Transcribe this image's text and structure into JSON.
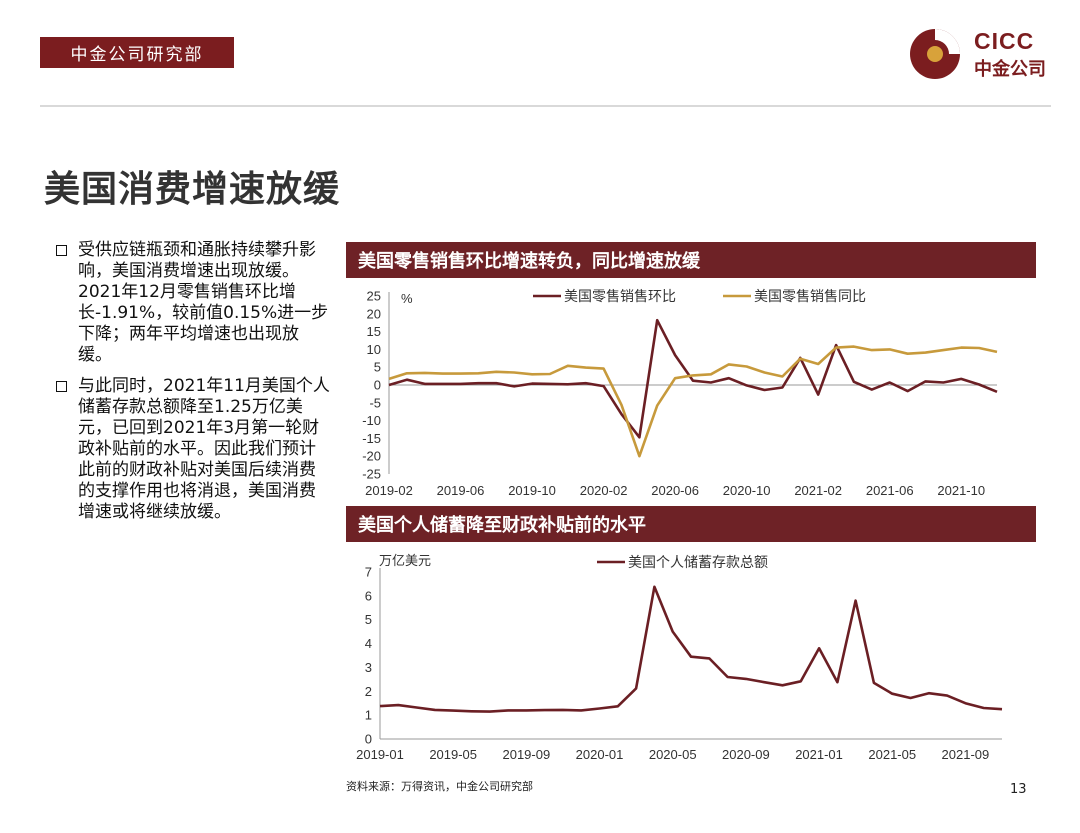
{
  "header": {
    "dept_tag": "中金公司研究部",
    "logo_en": "CICC",
    "logo_cn": "中金公司",
    "brand_color": "#7b1d1f"
  },
  "page_title": "美国消费增速放缓",
  "bullets": [
    "受供应链瓶颈和通胀持续攀升影响，美国消费增速出现放缓。2021年12月零售销售环比增长-1.91%，较前值0.15%进一步下降；两年平均增速也出现放缓。",
    "与此同时，2021年11月美国个人储蓄存款总额降至1.25万亿美元，已回到2021年3月第一轮财政补贴前的水平。因此我们预计此前的财政补贴对美国后续消费的支撑作用也将消退，美国消费增速或将继续放缓。"
  ],
  "chart1_title": "美国零售销售环比增速转负，同比增速放缓",
  "chart2_title": "美国个人储蓄降至财政补贴前的水平",
  "source": "资料来源：万得资讯，中金公司研究部",
  "page_number": "13",
  "chart_data": [
    {
      "type": "line",
      "ylabel": "%",
      "ylim": [
        -25,
        25
      ],
      "yticks": [
        25,
        20,
        15,
        10,
        5,
        0,
        -5,
        -10,
        -15,
        -20,
        -25
      ],
      "xtick_labels": [
        "2019-02",
        "2019-06",
        "2019-10",
        "2020-02",
        "2020-06",
        "2020-10",
        "2021-02",
        "2021-06",
        "2021-10"
      ],
      "x": [
        "2019-02",
        "2019-03",
        "2019-04",
        "2019-05",
        "2019-06",
        "2019-07",
        "2019-08",
        "2019-09",
        "2019-10",
        "2019-11",
        "2019-12",
        "2020-01",
        "2020-02",
        "2020-03",
        "2020-04",
        "2020-05",
        "2020-06",
        "2020-07",
        "2020-08",
        "2020-09",
        "2020-10",
        "2020-11",
        "2020-12",
        "2021-01",
        "2021-02",
        "2021-03",
        "2021-04",
        "2021-05",
        "2021-06",
        "2021-07",
        "2021-08",
        "2021-09",
        "2021-10",
        "2021-11",
        "2021-12"
      ],
      "legend_position": "top",
      "series": [
        {
          "name": "美国零售销售环比",
          "color": "#6b1f24",
          "values": [
            0.0,
            1.5,
            0.3,
            0.3,
            0.3,
            0.5,
            0.5,
            -0.4,
            0.4,
            0.3,
            0.2,
            0.5,
            -0.3,
            -8.2,
            -14.7,
            18.2,
            8.4,
            1.2,
            0.7,
            1.9,
            -0.1,
            -1.4,
            -0.7,
            7.6,
            -2.7,
            11.2,
            0.9,
            -1.3,
            0.7,
            -1.7,
            1.0,
            0.7,
            1.7,
            0.15,
            -1.91
          ]
        },
        {
          "name": "美国零售销售同比",
          "color": "#c79a3c",
          "values": [
            1.7,
            3.3,
            3.4,
            3.2,
            3.2,
            3.3,
            3.7,
            3.5,
            3.0,
            3.1,
            5.4,
            4.9,
            4.6,
            -5.6,
            -20.0,
            -5.8,
            1.9,
            2.7,
            3.0,
            5.8,
            5.2,
            3.5,
            2.4,
            7.4,
            5.9,
            10.5,
            10.8,
            9.8,
            10.0,
            8.8,
            9.1,
            9.8,
            10.5,
            10.4,
            9.3
          ]
        }
      ]
    },
    {
      "type": "line",
      "ylabel": "万亿美元",
      "ylim": [
        0,
        7
      ],
      "yticks": [
        7,
        6,
        5,
        4,
        3,
        2,
        1,
        0
      ],
      "xtick_labels": [
        "2019-01",
        "2019-05",
        "2019-09",
        "2020-01",
        "2020-05",
        "2020-09",
        "2021-01",
        "2021-05",
        "2021-09"
      ],
      "x": [
        "2019-01",
        "2019-02",
        "2019-03",
        "2019-04",
        "2019-05",
        "2019-06",
        "2019-07",
        "2019-08",
        "2019-09",
        "2019-10",
        "2019-11",
        "2019-12",
        "2020-01",
        "2020-02",
        "2020-03",
        "2020-04",
        "2020-05",
        "2020-06",
        "2020-07",
        "2020-08",
        "2020-09",
        "2020-10",
        "2020-11",
        "2020-12",
        "2021-01",
        "2021-02",
        "2021-03",
        "2021-04",
        "2021-05",
        "2021-06",
        "2021-07",
        "2021-08",
        "2021-09",
        "2021-10",
        "2021-11"
      ],
      "legend_position": "top",
      "series": [
        {
          "name": "美国个人储蓄存款总额",
          "color": "#6b1f24",
          "values": [
            1.38,
            1.42,
            1.32,
            1.22,
            1.19,
            1.16,
            1.15,
            1.2,
            1.2,
            1.21,
            1.22,
            1.2,
            1.28,
            1.37,
            2.12,
            6.38,
            4.5,
            3.45,
            3.38,
            2.6,
            2.52,
            2.38,
            2.25,
            2.42,
            3.8,
            2.38,
            5.8,
            2.35,
            1.9,
            1.72,
            1.92,
            1.82,
            1.5,
            1.3,
            1.25
          ]
        }
      ]
    }
  ]
}
